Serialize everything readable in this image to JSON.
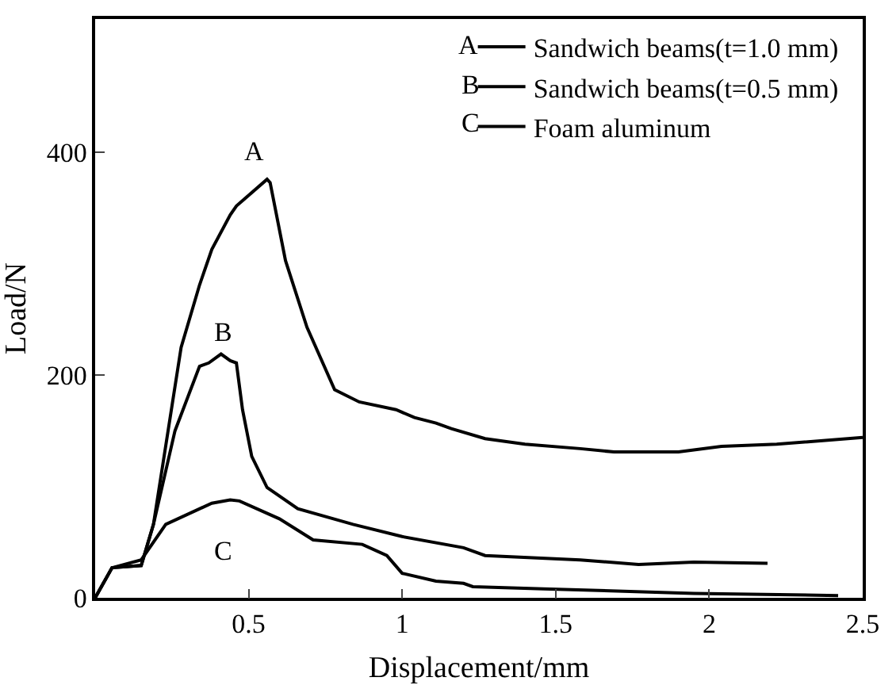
{
  "chart_data": {
    "type": "line",
    "xlabel": "Displacement/mm",
    "ylabel": "Load/N",
    "xlim": [
      0,
      2.5
    ],
    "ylim": [
      0,
      520
    ],
    "xticks": [
      0.5,
      1.0,
      1.5,
      2.0,
      2.5
    ],
    "yticks": [
      0,
      200,
      400
    ],
    "grid": false,
    "legend": "top right",
    "marker": "none",
    "line_style": "solid",
    "series": [
      {
        "name": "Sandwich beams(t=1.0 mm)",
        "color": "#000000",
        "x": [
          0,
          0.055,
          0.15,
          0.19,
          0.28,
          0.34,
          0.38,
          0.44,
          0.46,
          0.56,
          0.57,
          0.62,
          0.69,
          0.78,
          0.86,
          0.98,
          1.04,
          1.11,
          1.16,
          1.27,
          1.4,
          1.58,
          1.69,
          1.9,
          2.04,
          2.22,
          2.5
        ],
        "values": [
          0,
          27,
          29,
          66,
          225,
          281,
          313,
          344,
          352,
          376,
          373,
          303,
          243,
          187,
          176,
          169,
          162,
          157,
          152,
          143,
          138,
          134,
          131,
          131,
          136,
          138,
          144
        ]
      },
      {
        "name": "Sandwich beams(t=0.5 mm)",
        "color": "#000000",
        "x": [
          0,
          0.055,
          0.15,
          0.19,
          0.26,
          0.34,
          0.37,
          0.41,
          0.44,
          0.46,
          0.48,
          0.51,
          0.56,
          0.66,
          0.84,
          1.0,
          1.2,
          1.27,
          1.58,
          1.77,
          1.95,
          2.19
        ],
        "values": [
          0,
          27,
          29,
          66,
          150,
          208,
          211,
          219,
          213,
          211,
          169,
          127,
          99,
          80,
          66,
          55,
          45,
          38,
          34,
          30,
          32,
          31
        ]
      },
      {
        "name": "Foam aluminum",
        "color": "#000000",
        "x": [
          0,
          0.055,
          0.15,
          0.23,
          0.38,
          0.44,
          0.47,
          0.6,
          0.71,
          0.87,
          0.95,
          1.0,
          1.11,
          1.2,
          1.23,
          1.46,
          1.95,
          2.42
        ],
        "values": [
          0,
          27,
          34,
          66,
          85,
          88,
          87,
          71,
          52,
          48,
          38,
          22,
          15,
          13,
          10,
          8,
          4,
          2
        ]
      }
    ],
    "annotations": [
      "A",
      "B",
      "C",
      "A",
      "B",
      "C"
    ]
  }
}
